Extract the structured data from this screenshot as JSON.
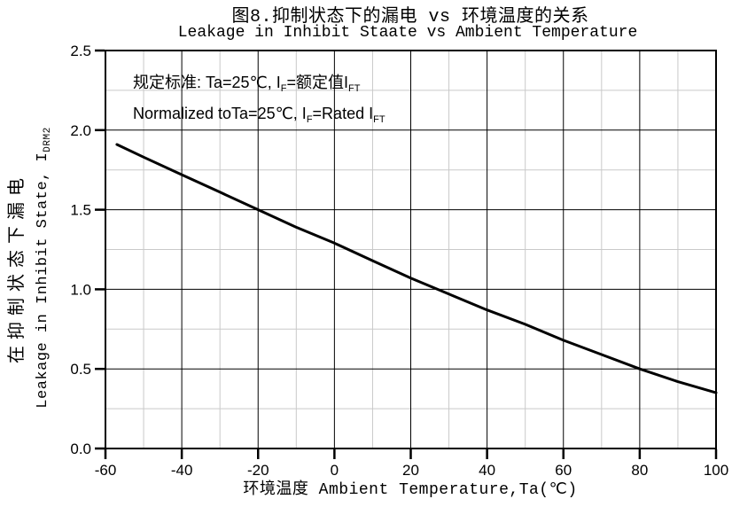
{
  "chart_data": {
    "type": "line",
    "title_cn": "图8.抑制状态下的漏电 vs 环境温度的关系",
    "title_en": "Leakage in Inhibit Staate vs Ambient Temperature",
    "xlabel": "环境温度 Ambient Temperature,Ta(℃)",
    "ylabel_cn": "在抑制状态下漏电",
    "ylabel_en": "Leakage in Inhibit State, I_DRM2",
    "xlim": [
      -60,
      100
    ],
    "ylim": [
      0.0,
      2.5
    ],
    "x_ticks": [
      "-60",
      "-40",
      "-20",
      "0",
      "20",
      "40",
      "60",
      "80",
      "100"
    ],
    "y_ticks": [
      "0.0",
      "0.5",
      "1.0",
      "1.5",
      "2.0",
      "2.5"
    ],
    "x_major_step": 20,
    "x_minor_step": 10,
    "y_major_step": 0.5,
    "y_minor_step": 0.25,
    "grid": "major and minor gridlines, boxed plot frame, no legend",
    "annotations": [
      "规定标准: Ta=25℃, I_F=额定值I_FT",
      "Normalized toTa=25℃, I_F=Rated I_FT"
    ],
    "series": [
      {
        "name": "Normalized leakage I_DRM2 vs ambient temperature",
        "color": "#000000",
        "points": [
          [
            -57,
            1.91
          ],
          [
            -50,
            1.83
          ],
          [
            -40,
            1.72
          ],
          [
            -30,
            1.61
          ],
          [
            -20,
            1.5
          ],
          [
            -10,
            1.39
          ],
          [
            0,
            1.29
          ],
          [
            10,
            1.18
          ],
          [
            20,
            1.07
          ],
          [
            30,
            0.97
          ],
          [
            40,
            0.87
          ],
          [
            50,
            0.78
          ],
          [
            60,
            0.68
          ],
          [
            70,
            0.59
          ],
          [
            80,
            0.5
          ],
          [
            90,
            0.42
          ],
          [
            100,
            0.35
          ]
        ]
      }
    ]
  },
  "display": {
    "annotation_line1": {
      "pre": "规定标准: Ta=25℃, I",
      "sub1": "F",
      "mid": "=额定值I",
      "sub2": "FT"
    },
    "annotation_line2": {
      "pre": "Normalized toTa=25℃, I",
      "sub1": "F",
      "mid": "=Rated I",
      "sub2": "FT"
    },
    "ylabel_en_pre": "Leakage in Inhibit State, I",
    "ylabel_en_sub": "DRM2"
  },
  "colors": {
    "background": "#ffffff",
    "text": "#000000",
    "curve": "#000000",
    "plot_border": "#000000",
    "major_grid": "#000000",
    "minor_grid": "#c9c9c9"
  }
}
